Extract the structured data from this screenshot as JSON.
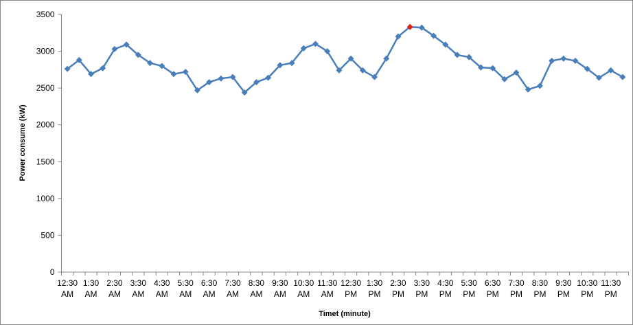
{
  "chart_data": {
    "type": "line",
    "y_label": "Power consume (kW)",
    "x_label": "Timet (minute)",
    "categories": [
      "12:30 AM",
      null,
      "1:30 AM",
      null,
      "2:30 AM",
      null,
      "3:30 AM",
      null,
      "4:30 AM",
      null,
      "5:30 AM",
      null,
      "6:30 AM",
      null,
      "7:30 AM",
      null,
      "8:30 AM",
      null,
      "9:30 AM",
      null,
      "10:30 AM",
      null,
      "11:30 AM",
      null,
      "12:30 PM",
      null,
      "1:30 PM",
      null,
      "2:30 PM",
      null,
      "3:30 PM",
      null,
      "4:30 PM",
      null,
      "5:30 PM",
      null,
      "6:30 PM",
      null,
      "7:30 PM",
      null,
      "8:30 PM",
      null,
      "9:30 PM",
      null,
      "10:30 PM",
      null,
      "11:30 PM",
      null
    ],
    "values": [
      2760,
      2880,
      2690,
      2770,
      3030,
      3090,
      2950,
      2840,
      2800,
      2690,
      2720,
      2470,
      2580,
      2630,
      2650,
      2440,
      2580,
      2640,
      2810,
      2840,
      3040,
      3100,
      3000,
      2740,
      2900,
      2740,
      2650,
      2900,
      3200,
      3330,
      3320,
      3210,
      3090,
      2950,
      2920,
      2780,
      2770,
      2620,
      2710,
      2480,
      2530,
      2870,
      2900,
      2870,
      2760,
      2640,
      2740,
      2650
    ],
    "color": "#4a7ebb",
    "highlight": {
      "index": 29,
      "color": "#e0201b"
    },
    "ylim": [
      0,
      3500
    ],
    "yticks": [
      0,
      500,
      1000,
      1500,
      2000,
      2500,
      3000,
      3500
    ],
    "grid": false
  }
}
